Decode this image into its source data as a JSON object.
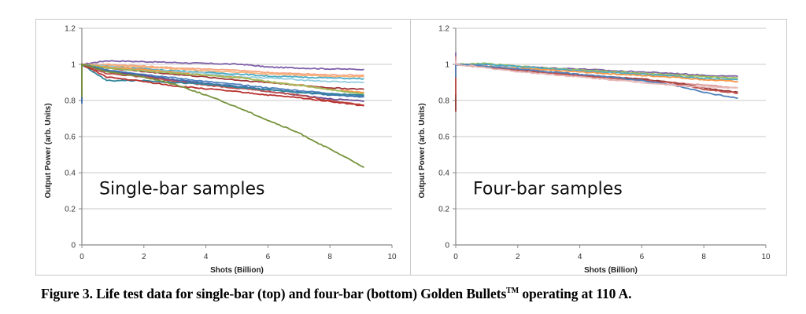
{
  "caption": {
    "prefix": "Figure 3.  Life test data for single-bar (top) and four-bar (bottom) Golden Bullets",
    "superscript": "TM",
    "suffix": " operating at 110 A."
  },
  "chart_data": [
    {
      "type": "line",
      "title": "",
      "annotation": "Single-bar samples",
      "xlabel": "Shots (Billion)",
      "ylabel": "Output Power (arb. Units)",
      "xlim": [
        0,
        10
      ],
      "ylim": [
        0,
        1.2
      ],
      "xticks": [
        "0",
        "2",
        "4",
        "6",
        "8",
        "10"
      ],
      "yticks": [
        "0",
        "0.2",
        "0.4",
        "0.6",
        "0.8",
        "1",
        "1.2"
      ],
      "grid": "horizontal",
      "legend": "none",
      "x": [
        0,
        0.8,
        2,
        3,
        4,
        5.2,
        6,
        7,
        8,
        9.1
      ],
      "series": [
        {
          "name": "purple-top",
          "color": "#7f5fa8",
          "values": [
            1.0,
            1.02,
            1.015,
            1.01,
            1.005,
            1.0,
            0.985,
            0.98,
            0.975,
            0.972
          ]
        },
        {
          "name": "peach",
          "color": "#f4a582",
          "values": [
            1.0,
            1.0,
            0.99,
            0.98,
            0.975,
            0.965,
            0.955,
            0.948,
            0.942,
            0.94
          ]
        },
        {
          "name": "orange-light",
          "color": "#f9b27a",
          "values": [
            1.0,
            0.995,
            0.985,
            0.975,
            0.965,
            0.955,
            0.948,
            0.94,
            0.935,
            0.932
          ]
        },
        {
          "name": "teal",
          "color": "#4bacc6",
          "values": [
            1.0,
            0.99,
            0.975,
            0.965,
            0.955,
            0.945,
            0.935,
            0.93,
            0.925,
            0.92
          ]
        },
        {
          "name": "light-blue",
          "color": "#93cddd",
          "values": [
            1.0,
            0.99,
            0.97,
            0.96,
            0.95,
            0.93,
            0.925,
            0.915,
            0.905,
            0.9
          ]
        },
        {
          "name": "dark-red-1",
          "color": "#a0353a",
          "values": [
            1.0,
            0.98,
            0.96,
            0.945,
            0.93,
            0.91,
            0.9,
            0.885,
            0.87,
            0.862
          ]
        },
        {
          "name": "orange",
          "color": "#f79646",
          "values": [
            1.0,
            0.985,
            0.97,
            0.955,
            0.94,
            0.925,
            0.905,
            0.885,
            0.86,
            0.845
          ]
        },
        {
          "name": "olive-green",
          "color": "#9bbb59",
          "values": [
            1.0,
            0.98,
            0.965,
            0.95,
            0.94,
            0.925,
            0.905,
            0.885,
            0.86,
            0.835
          ]
        },
        {
          "name": "blue-1",
          "color": "#4f81bd",
          "values": [
            1.0,
            0.97,
            0.945,
            0.925,
            0.905,
            0.885,
            0.87,
            0.855,
            0.84,
            0.825
          ]
        },
        {
          "name": "blue-2",
          "color": "#3a6fb0",
          "values": [
            1.0,
            0.965,
            0.94,
            0.915,
            0.895,
            0.875,
            0.86,
            0.845,
            0.83,
            0.82
          ]
        },
        {
          "name": "purple-low",
          "color": "#6a4c93",
          "values": [
            1.0,
            0.96,
            0.935,
            0.91,
            0.89,
            0.87,
            0.85,
            0.83,
            0.81,
            0.795
          ]
        },
        {
          "name": "red-1",
          "color": "#c0504d",
          "values": [
            1.0,
            0.95,
            0.93,
            0.905,
            0.885,
            0.865,
            0.85,
            0.83,
            0.8,
            0.775
          ]
        },
        {
          "name": "teal-dark",
          "color": "#31859c",
          "values": [
            1.0,
            0.91,
            0.91,
            0.9,
            0.89,
            0.87,
            0.86,
            0.845,
            0.835,
            0.83
          ]
        },
        {
          "name": "red-2",
          "color": "#b8312f",
          "values": [
            1.0,
            0.93,
            0.905,
            0.88,
            0.865,
            0.845,
            0.83,
            0.815,
            0.795,
            0.77
          ]
        },
        {
          "name": "green-degrading",
          "color": "#77933c",
          "values": [
            1.0,
            0.96,
            0.93,
            0.89,
            0.83,
            0.75,
            0.69,
            0.62,
            0.53,
            0.43
          ]
        }
      ]
    },
    {
      "type": "line",
      "title": "",
      "annotation": "Four-bar samples",
      "xlabel": "Shots (Billion)",
      "ylabel": "Output Power (arb. Units)",
      "xlim": [
        0,
        10
      ],
      "ylim": [
        0,
        1.2
      ],
      "xticks": [
        "0",
        "2",
        "4",
        "6",
        "8",
        "10"
      ],
      "yticks": [
        "0",
        "0.2",
        "0.4",
        "0.6",
        "0.8",
        "1",
        "1.2"
      ],
      "grid": "horizontal",
      "legend": "none",
      "x": [
        0,
        1,
        2,
        3,
        4,
        5,
        6,
        7,
        8,
        9.1
      ],
      "series": [
        {
          "name": "purple",
          "color": "#8064a2",
          "values": [
            1.0,
            1.0,
            0.99,
            0.98,
            0.975,
            0.965,
            0.958,
            0.95,
            0.94,
            0.933
          ]
        },
        {
          "name": "green",
          "color": "#9bbb59",
          "values": [
            1.0,
            1.005,
            0.99,
            0.978,
            0.97,
            0.96,
            0.95,
            0.942,
            0.932,
            0.925
          ]
        },
        {
          "name": "teal",
          "color": "#4bacc6",
          "values": [
            1.0,
            1.0,
            0.988,
            0.975,
            0.965,
            0.955,
            0.945,
            0.935,
            0.922,
            0.915
          ]
        },
        {
          "name": "orange",
          "color": "#f79646",
          "values": [
            1.0,
            0.99,
            0.978,
            0.968,
            0.958,
            0.948,
            0.938,
            0.93,
            0.915,
            0.905
          ]
        },
        {
          "name": "pink",
          "color": "#d99694",
          "values": [
            1.0,
            0.985,
            0.965,
            0.95,
            0.935,
            0.92,
            0.91,
            0.9,
            0.885,
            0.87
          ]
        },
        {
          "name": "dark-red",
          "color": "#953735",
          "values": [
            1.0,
            0.985,
            0.97,
            0.955,
            0.94,
            0.93,
            0.92,
            0.9,
            0.87,
            0.845
          ]
        },
        {
          "name": "red",
          "color": "#c0504d",
          "values": [
            1.0,
            0.985,
            0.97,
            0.952,
            0.938,
            0.925,
            0.915,
            0.895,
            0.862,
            0.84
          ]
        },
        {
          "name": "blue",
          "color": "#4f81bd",
          "values": [
            1.0,
            0.99,
            0.975,
            0.96,
            0.945,
            0.93,
            0.91,
            0.885,
            0.845,
            0.812
          ]
        },
        {
          "name": "light-pink",
          "color": "#e6b9b8",
          "values": [
            1.0,
            0.98,
            0.96,
            0.945,
            0.93,
            0.915,
            0.9,
            0.885,
            0.875,
            0.87
          ]
        }
      ]
    }
  ]
}
